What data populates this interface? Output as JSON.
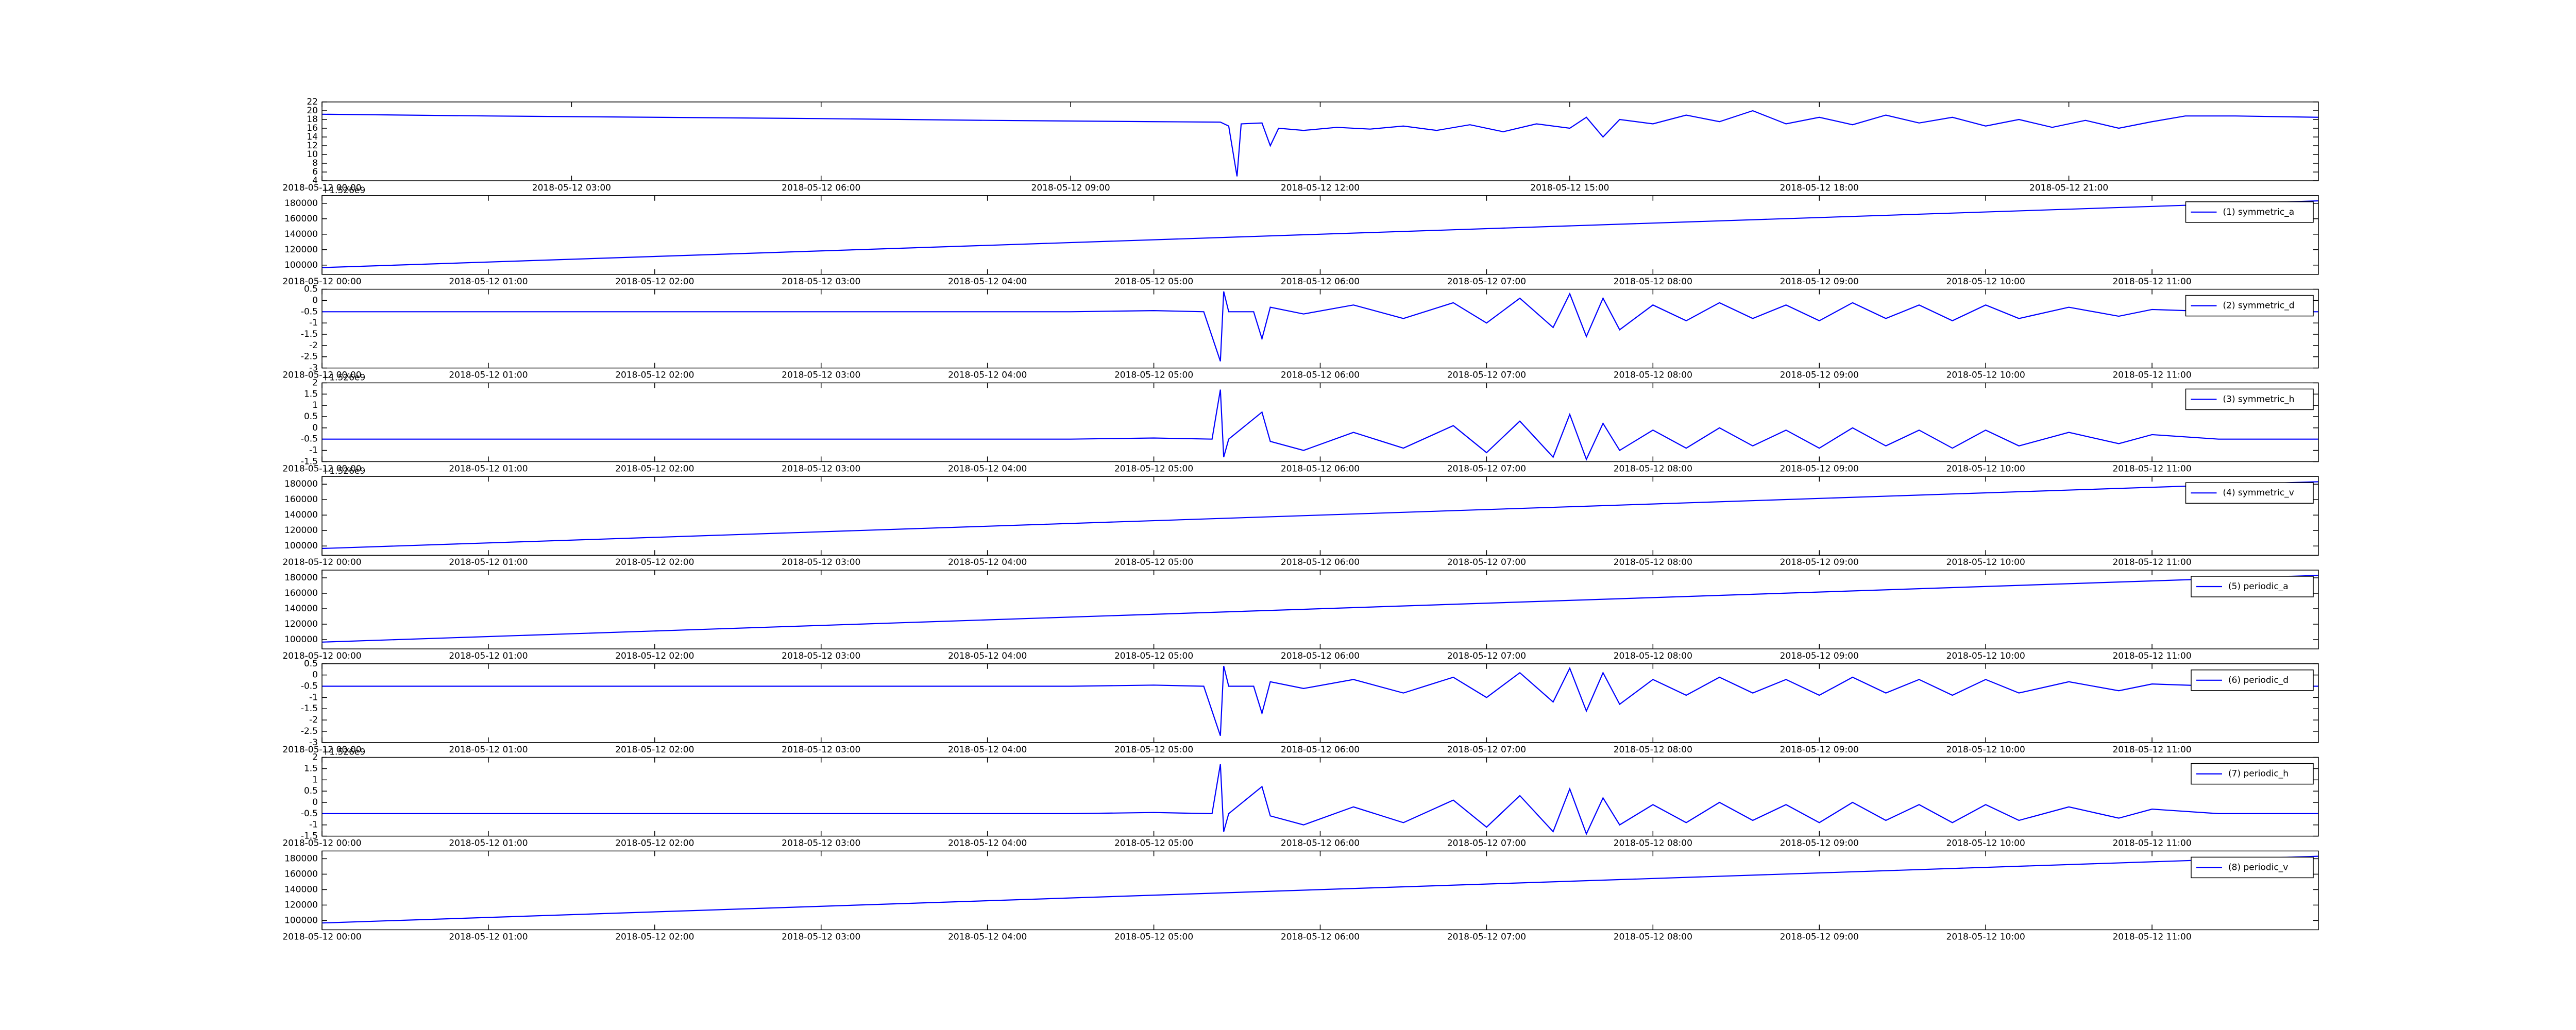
{
  "chart_data": [
    {
      "type": "line",
      "x": [
        0,
        2,
        4,
        6,
        8,
        10,
        10.8,
        10.9,
        11.0,
        11.05,
        11.3,
        11.4,
        11.5,
        11.8,
        12.2,
        12.6,
        13.0,
        13.4,
        13.8,
        14.2,
        14.6,
        15.0,
        15.2,
        15.4,
        15.6,
        16.0,
        16.4,
        16.8,
        17.2,
        17.6,
        18.0,
        18.4,
        18.8,
        19.2,
        19.6,
        20.0,
        20.4,
        20.8,
        21.2,
        21.6,
        22.0,
        22.4,
        23.0,
        24
      ],
      "series": [
        {
          "color": "#0000ff",
          "values": [
            19.2,
            18.8,
            18.5,
            18.2,
            17.8,
            17.5,
            17.4,
            16.5,
            5,
            17,
            17.2,
            12,
            16,
            15.5,
            16.2,
            15.8,
            16.5,
            15.5,
            16.8,
            15.2,
            17,
            16,
            18.5,
            14,
            18,
            17,
            19,
            17.5,
            20,
            17,
            18.5,
            16.8,
            19,
            17.2,
            18.5,
            16.5,
            18,
            16.2,
            17.8,
            16,
            17.5,
            18.8,
            18.8,
            18.5
          ]
        }
      ],
      "xlim": [
        0,
        24
      ],
      "ylim": [
        4,
        22
      ],
      "xticks": [
        {
          "value": 0,
          "label": "2018-05-12 00:00"
        },
        {
          "value": 3,
          "label": "2018-05-12 03:00"
        },
        {
          "value": 6,
          "label": "2018-05-12 06:00"
        },
        {
          "value": 9,
          "label": "2018-05-12 09:00"
        },
        {
          "value": 12,
          "label": "2018-05-12 12:00"
        },
        {
          "value": 15,
          "label": "2018-05-12 15:00"
        },
        {
          "value": 18,
          "label": "2018-05-12 18:00"
        },
        {
          "value": 21,
          "label": "2018-05-12 21:00"
        }
      ],
      "yticks": [
        4,
        6,
        8,
        10,
        12,
        14,
        16,
        18,
        20,
        22
      ]
    },
    {
      "type": "line",
      "x": [
        0,
        12
      ],
      "series": [
        {
          "name": "(1) symmetric_a",
          "color": "#0000ff",
          "values": [
            96800,
            183200
          ]
        }
      ],
      "xlim": [
        0,
        12
      ],
      "ylim": [
        88000,
        190000
      ],
      "y_offset_label": "+1.526e9",
      "xticks": [
        {
          "value": 0,
          "label": "2018-05-12 00:00"
        },
        {
          "value": 1,
          "label": "2018-05-12 01:00"
        },
        {
          "value": 2,
          "label": "2018-05-12 02:00"
        },
        {
          "value": 3,
          "label": "2018-05-12 03:00"
        },
        {
          "value": 4,
          "label": "2018-05-12 04:00"
        },
        {
          "value": 5,
          "label": "2018-05-12 05:00"
        },
        {
          "value": 6,
          "label": "2018-05-12 06:00"
        },
        {
          "value": 7,
          "label": "2018-05-12 07:00"
        },
        {
          "value": 8,
          "label": "2018-05-12 08:00"
        },
        {
          "value": 9,
          "label": "2018-05-12 09:00"
        },
        {
          "value": 10,
          "label": "2018-05-12 10:00"
        },
        {
          "value": 11,
          "label": "2018-05-12 11:00"
        }
      ],
      "yticks": [
        100000,
        120000,
        140000,
        160000,
        180000
      ]
    },
    {
      "type": "line",
      "x": [
        0,
        4.5,
        5.0,
        5.3,
        5.4,
        5.42,
        5.45,
        5.6,
        5.65,
        5.7,
        5.9,
        6.2,
        6.5,
        6.8,
        7.0,
        7.2,
        7.4,
        7.5,
        7.6,
        7.7,
        7.8,
        8.0,
        8.2,
        8.4,
        8.6,
        8.8,
        9.0,
        9.2,
        9.4,
        9.6,
        9.8,
        10.0,
        10.2,
        10.5,
        10.8,
        11.0,
        11.4,
        12
      ],
      "series": [
        {
          "name": "(2) symmetric_d",
          "color": "#0000ff",
          "values": [
            -0.5,
            -0.5,
            -0.45,
            -0.5,
            -2.7,
            0.4,
            -0.5,
            -0.5,
            -1.7,
            -0.3,
            -0.6,
            -0.2,
            -0.8,
            -0.1,
            -1.0,
            0.1,
            -1.2,
            0.3,
            -1.6,
            0.1,
            -1.3,
            -0.2,
            -0.9,
            -0.1,
            -0.8,
            -0.2,
            -0.9,
            -0.1,
            -0.8,
            -0.2,
            -0.9,
            -0.2,
            -0.8,
            -0.3,
            -0.7,
            -0.4,
            -0.5,
            -0.5
          ]
        }
      ],
      "xlim": [
        0,
        12
      ],
      "ylim": [
        -3.0,
        0.5
      ],
      "xticks": [
        {
          "value": 0,
          "label": "2018-05-12 00:00"
        },
        {
          "value": 1,
          "label": "2018-05-12 01:00"
        },
        {
          "value": 2,
          "label": "2018-05-12 02:00"
        },
        {
          "value": 3,
          "label": "2018-05-12 03:00"
        },
        {
          "value": 4,
          "label": "2018-05-12 04:00"
        },
        {
          "value": 5,
          "label": "2018-05-12 05:00"
        },
        {
          "value": 6,
          "label": "2018-05-12 06:00"
        },
        {
          "value": 7,
          "label": "2018-05-12 07:00"
        },
        {
          "value": 8,
          "label": "2018-05-12 08:00"
        },
        {
          "value": 9,
          "label": "2018-05-12 09:00"
        },
        {
          "value": 10,
          "label": "2018-05-12 10:00"
        },
        {
          "value": 11,
          "label": "2018-05-12 11:00"
        }
      ],
      "yticks": [
        -3.0,
        -2.5,
        -2.0,
        -1.5,
        -1.0,
        -0.5,
        0.0,
        0.5
      ]
    },
    {
      "type": "line",
      "x": [
        0,
        4.5,
        5.0,
        5.35,
        5.4,
        5.42,
        5.45,
        5.65,
        5.7,
        5.9,
        6.2,
        6.5,
        6.8,
        7.0,
        7.2,
        7.4,
        7.5,
        7.6,
        7.7,
        7.8,
        8.0,
        8.2,
        8.4,
        8.6,
        8.8,
        9.0,
        9.2,
        9.4,
        9.6,
        9.8,
        10.0,
        10.2,
        10.5,
        10.8,
        11.0,
        11.4,
        12
      ],
      "series": [
        {
          "name": "(3) symmetric_h",
          "color": "#0000ff",
          "values": [
            -0.5,
            -0.5,
            -0.45,
            -0.5,
            1.7,
            -1.3,
            -0.5,
            0.7,
            -0.6,
            -1.0,
            -0.2,
            -0.9,
            0.1,
            -1.1,
            0.3,
            -1.3,
            0.6,
            -1.4,
            0.2,
            -1.0,
            -0.1,
            -0.9,
            0.0,
            -0.8,
            -0.1,
            -0.9,
            0.0,
            -0.8,
            -0.1,
            -0.9,
            -0.1,
            -0.8,
            -0.2,
            -0.7,
            -0.3,
            -0.5,
            -0.5
          ]
        }
      ],
      "xlim": [
        0,
        12
      ],
      "ylim": [
        -1.5,
        2.0
      ],
      "y_offset_label": "+1.526e9",
      "xticks": [
        {
          "value": 0,
          "label": "2018-05-12 00:00"
        },
        {
          "value": 1,
          "label": "2018-05-12 01:00"
        },
        {
          "value": 2,
          "label": "2018-05-12 02:00"
        },
        {
          "value": 3,
          "label": "2018-05-12 03:00"
        },
        {
          "value": 4,
          "label": "2018-05-12 04:00"
        },
        {
          "value": 5,
          "label": "2018-05-12 05:00"
        },
        {
          "value": 6,
          "label": "2018-05-12 06:00"
        },
        {
          "value": 7,
          "label": "2018-05-12 07:00"
        },
        {
          "value": 8,
          "label": "2018-05-12 08:00"
        },
        {
          "value": 9,
          "label": "2018-05-12 09:00"
        },
        {
          "value": 10,
          "label": "2018-05-12 10:00"
        },
        {
          "value": 11,
          "label": "2018-05-12 11:00"
        }
      ],
      "yticks": [
        -1.5,
        -1.0,
        -0.5,
        0.0,
        0.5,
        1.0,
        1.5,
        2.0
      ]
    },
    {
      "type": "line",
      "x": [
        0,
        12
      ],
      "series": [
        {
          "name": "(4) symmetric_v",
          "color": "#0000ff",
          "values": [
            96800,
            183200
          ]
        }
      ],
      "xlim": [
        0,
        12
      ],
      "ylim": [
        88000,
        190000
      ],
      "y_offset_label": "+1.526e9",
      "xticks": [
        {
          "value": 0,
          "label": "2018-05-12 00:00"
        },
        {
          "value": 1,
          "label": "2018-05-12 01:00"
        },
        {
          "value": 2,
          "label": "2018-05-12 02:00"
        },
        {
          "value": 3,
          "label": "2018-05-12 03:00"
        },
        {
          "value": 4,
          "label": "2018-05-12 04:00"
        },
        {
          "value": 5,
          "label": "2018-05-12 05:00"
        },
        {
          "value": 6,
          "label": "2018-05-12 06:00"
        },
        {
          "value": 7,
          "label": "2018-05-12 07:00"
        },
        {
          "value": 8,
          "label": "2018-05-12 08:00"
        },
        {
          "value": 9,
          "label": "2018-05-12 09:00"
        },
        {
          "value": 10,
          "label": "2018-05-12 10:00"
        },
        {
          "value": 11,
          "label": "2018-05-12 11:00"
        }
      ],
      "yticks": [
        100000,
        120000,
        140000,
        160000,
        180000
      ]
    },
    {
      "type": "line",
      "x": [
        0,
        12
      ],
      "series": [
        {
          "name": "(5) periodic_a",
          "color": "#0000ff",
          "values": [
            96800,
            183200
          ]
        }
      ],
      "xlim": [
        0,
        12
      ],
      "ylim": [
        88000,
        190000
      ],
      "xticks": [
        {
          "value": 0,
          "label": "2018-05-12 00:00"
        },
        {
          "value": 1,
          "label": "2018-05-12 01:00"
        },
        {
          "value": 2,
          "label": "2018-05-12 02:00"
        },
        {
          "value": 3,
          "label": "2018-05-12 03:00"
        },
        {
          "value": 4,
          "label": "2018-05-12 04:00"
        },
        {
          "value": 5,
          "label": "2018-05-12 05:00"
        },
        {
          "value": 6,
          "label": "2018-05-12 06:00"
        },
        {
          "value": 7,
          "label": "2018-05-12 07:00"
        },
        {
          "value": 8,
          "label": "2018-05-12 08:00"
        },
        {
          "value": 9,
          "label": "2018-05-12 09:00"
        },
        {
          "value": 10,
          "label": "2018-05-12 10:00"
        },
        {
          "value": 11,
          "label": "2018-05-12 11:00"
        }
      ],
      "yticks": [
        100000,
        120000,
        140000,
        160000,
        180000
      ]
    },
    {
      "type": "line",
      "x": [
        0,
        4.5,
        5.0,
        5.3,
        5.4,
        5.42,
        5.45,
        5.6,
        5.65,
        5.7,
        5.9,
        6.2,
        6.5,
        6.8,
        7.0,
        7.2,
        7.4,
        7.5,
        7.6,
        7.7,
        7.8,
        8.0,
        8.2,
        8.4,
        8.6,
        8.8,
        9.0,
        9.2,
        9.4,
        9.6,
        9.8,
        10.0,
        10.2,
        10.5,
        10.8,
        11.0,
        11.4,
        12
      ],
      "series": [
        {
          "name": "(6) periodic_d",
          "color": "#0000ff",
          "values": [
            -0.5,
            -0.5,
            -0.45,
            -0.5,
            -2.7,
            0.4,
            -0.5,
            -0.5,
            -1.7,
            -0.3,
            -0.6,
            -0.2,
            -0.8,
            -0.1,
            -1.0,
            0.1,
            -1.2,
            0.3,
            -1.6,
            0.1,
            -1.3,
            -0.2,
            -0.9,
            -0.1,
            -0.8,
            -0.2,
            -0.9,
            -0.1,
            -0.8,
            -0.2,
            -0.9,
            -0.2,
            -0.8,
            -0.3,
            -0.7,
            -0.4,
            -0.5,
            -0.5
          ]
        }
      ],
      "xlim": [
        0,
        12
      ],
      "ylim": [
        -3.0,
        0.5
      ],
      "xticks": [
        {
          "value": 0,
          "label": "2018-05-12 00:00"
        },
        {
          "value": 1,
          "label": "2018-05-12 01:00"
        },
        {
          "value": 2,
          "label": "2018-05-12 02:00"
        },
        {
          "value": 3,
          "label": "2018-05-12 03:00"
        },
        {
          "value": 4,
          "label": "2018-05-12 04:00"
        },
        {
          "value": 5,
          "label": "2018-05-12 05:00"
        },
        {
          "value": 6,
          "label": "2018-05-12 06:00"
        },
        {
          "value": 7,
          "label": "2018-05-12 07:00"
        },
        {
          "value": 8,
          "label": "2018-05-12 08:00"
        },
        {
          "value": 9,
          "label": "2018-05-12 09:00"
        },
        {
          "value": 10,
          "label": "2018-05-12 10:00"
        },
        {
          "value": 11,
          "label": "2018-05-12 11:00"
        }
      ],
      "yticks": [
        -3.0,
        -2.5,
        -2.0,
        -1.5,
        -1.0,
        -0.5,
        0.0,
        0.5
      ]
    },
    {
      "type": "line",
      "x": [
        0,
        4.5,
        5.0,
        5.35,
        5.4,
        5.42,
        5.45,
        5.65,
        5.7,
        5.9,
        6.2,
        6.5,
        6.8,
        7.0,
        7.2,
        7.4,
        7.5,
        7.6,
        7.7,
        7.8,
        8.0,
        8.2,
        8.4,
        8.6,
        8.8,
        9.0,
        9.2,
        9.4,
        9.6,
        9.8,
        10.0,
        10.2,
        10.5,
        10.8,
        11.0,
        11.4,
        12
      ],
      "series": [
        {
          "name": "(7) periodic_h",
          "color": "#0000ff",
          "values": [
            -0.5,
            -0.5,
            -0.45,
            -0.5,
            1.7,
            -1.3,
            -0.5,
            0.7,
            -0.6,
            -1.0,
            -0.2,
            -0.9,
            0.1,
            -1.1,
            0.3,
            -1.3,
            0.6,
            -1.4,
            0.2,
            -1.0,
            -0.1,
            -0.9,
            0.0,
            -0.8,
            -0.1,
            -0.9,
            0.0,
            -0.8,
            -0.1,
            -0.9,
            -0.1,
            -0.8,
            -0.2,
            -0.7,
            -0.3,
            -0.5,
            -0.5
          ]
        }
      ],
      "xlim": [
        0,
        12
      ],
      "ylim": [
        -1.5,
        2.0
      ],
      "y_offset_label": "+1.526e9",
      "xticks": [
        {
          "value": 0,
          "label": "2018-05-12 00:00"
        },
        {
          "value": 1,
          "label": "2018-05-12 01:00"
        },
        {
          "value": 2,
          "label": "2018-05-12 02:00"
        },
        {
          "value": 3,
          "label": "2018-05-12 03:00"
        },
        {
          "value": 4,
          "label": "2018-05-12 04:00"
        },
        {
          "value": 5,
          "label": "2018-05-12 05:00"
        },
        {
          "value": 6,
          "label": "2018-05-12 06:00"
        },
        {
          "value": 7,
          "label": "2018-05-12 07:00"
        },
        {
          "value": 8,
          "label": "2018-05-12 08:00"
        },
        {
          "value": 9,
          "label": "2018-05-12 09:00"
        },
        {
          "value": 10,
          "label": "2018-05-12 10:00"
        },
        {
          "value": 11,
          "label": "2018-05-12 11:00"
        }
      ],
      "yticks": [
        -1.5,
        -1.0,
        -0.5,
        0.0,
        0.5,
        1.0,
        1.5,
        2.0
      ]
    },
    {
      "type": "line",
      "x": [
        0,
        12
      ],
      "series": [
        {
          "name": "(8) periodic_v",
          "color": "#0000ff",
          "values": [
            96800,
            183200
          ]
        }
      ],
      "xlim": [
        0,
        12
      ],
      "ylim": [
        88000,
        190000
      ],
      "xticks": [
        {
          "value": 0,
          "label": "2018-05-12 00:00"
        },
        {
          "value": 1,
          "label": "2018-05-12 01:00"
        },
        {
          "value": 2,
          "label": "2018-05-12 02:00"
        },
        {
          "value": 3,
          "label": "2018-05-12 03:00"
        },
        {
          "value": 4,
          "label": "2018-05-12 04:00"
        },
        {
          "value": 5,
          "label": "2018-05-12 05:00"
        },
        {
          "value": 6,
          "label": "2018-05-12 06:00"
        },
        {
          "value": 7,
          "label": "2018-05-12 07:00"
        },
        {
          "value": 8,
          "label": "2018-05-12 08:00"
        },
        {
          "value": 9,
          "label": "2018-05-12 09:00"
        },
        {
          "value": 10,
          "label": "2018-05-12 10:00"
        },
        {
          "value": 11,
          "label": "2018-05-12 11:00"
        }
      ],
      "yticks": [
        100000,
        120000,
        140000,
        160000,
        180000
      ]
    }
  ]
}
